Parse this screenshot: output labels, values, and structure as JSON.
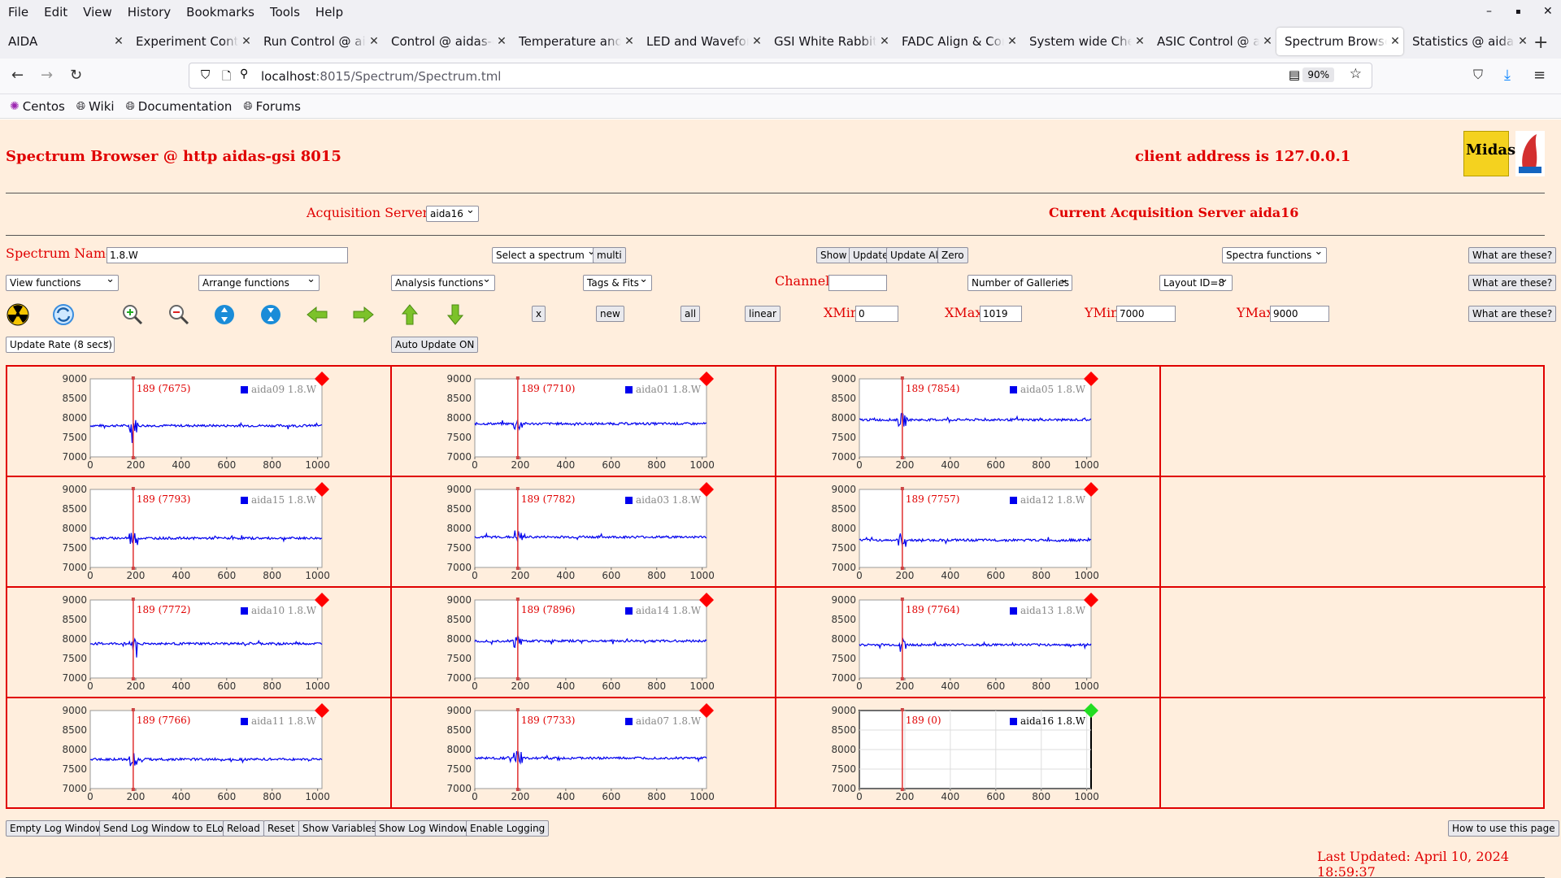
{
  "menu": [
    "File",
    "Edit",
    "View",
    "History",
    "Bookmarks",
    "Tools",
    "Help"
  ],
  "window_controls": [
    "–",
    "▪",
    "✕"
  ],
  "tabs": [
    {
      "label": "AIDA",
      "active": false
    },
    {
      "label": "Experiment Control",
      "active": false
    },
    {
      "label": "Run Control @ aidas",
      "active": false
    },
    {
      "label": "Control @ aidas-gsi",
      "active": false
    },
    {
      "label": "Temperature and s",
      "active": false
    },
    {
      "label": "LED and Waveform",
      "active": false
    },
    {
      "label": "GSI White Rabbit T",
      "active": false
    },
    {
      "label": "FADC Align & Cont",
      "active": false
    },
    {
      "label": "System wide Check",
      "active": false
    },
    {
      "label": "ASIC Control @ aid",
      "active": false
    },
    {
      "label": "Spectrum Browser",
      "active": true
    },
    {
      "label": "Statistics @ aidas-",
      "active": false
    }
  ],
  "nav": {
    "url_host": "localhost",
    "url_path": ":8015/Spectrum/Spectrum.tml",
    "zoom": "90%"
  },
  "bookmarks": [
    {
      "label": "Centos",
      "icon": "centos-icon"
    },
    {
      "label": "Wiki",
      "icon": "globe-icon"
    },
    {
      "label": "Documentation",
      "icon": "globe-icon"
    },
    {
      "label": "Forums",
      "icon": "globe-icon"
    }
  ],
  "page": {
    "title": "Spectrum Browser @ http aidas-gsi 8015",
    "client_address": "client address is 127.0.0.1",
    "logo_text": "Midas",
    "acq_label": "Acquisition Servers",
    "acq_selected": "aida16",
    "current_server": "Current Acquisition Server aida16",
    "spectrum_name_label": "Spectrum Name:",
    "spectrum_name_value": "1.8.W",
    "select_spectrum": "Select a spectrum",
    "multi": "multi",
    "show": "Show",
    "update": "Update",
    "update_all": "Update All",
    "zero": "Zero",
    "spectra_functions": "Spectra functions",
    "what_are_these": "What are these?",
    "view_functions": "View functions",
    "arrange_functions": "Arrange functions",
    "analysis_functions": "Analysis functions",
    "tags_fits": "Tags & Fits",
    "channel_label": "Channel:",
    "channel_value": "",
    "number_of_galleries": "Number of Galleries",
    "layout_id": "Layout ID=8",
    "x_btn": "x",
    "new_btn": "new",
    "all_btn": "all",
    "linear_btn": "linear",
    "xmin_label": "XMin",
    "xmin_value": "0",
    "xmax_label": "XMax",
    "xmax_value": "1019",
    "ymin_label": "YMin",
    "ymin_value": "7000",
    "ymax_label": "YMax",
    "ymax_value": "9000",
    "update_rate": "Update Rate (8 secs)",
    "auto_update": "Auto Update ON",
    "icons": [
      "radiation-icon",
      "refresh-icon",
      "zoom-in-icon",
      "zoom-out-icon",
      "expand-y-icon",
      "compress-y-icon",
      "left-arrow-icon",
      "right-arrow-icon",
      "up-arrow-icon",
      "down-arrow-icon"
    ],
    "bottom_buttons": [
      "Empty Log Window",
      "Send Log Window to ELog",
      "Reload",
      "Reset",
      "Show Variables",
      "Show Log Window",
      "Enable Logging"
    ],
    "how_to": "How to use this page",
    "last_updated": "Last Updated: April 10, 2024 18:59:37"
  },
  "chart_data": [
    {
      "type": "line",
      "series": [
        {
          "name": "aida09 1.8.W"
        }
      ],
      "marker_label": "189 (7675)",
      "marker_x": 189,
      "baseline": 7800,
      "status_color": "#ff0000",
      "xlim": [
        0,
        1019
      ],
      "ylim": [
        7000,
        9000
      ],
      "x_ticks": [
        0,
        200,
        400,
        600,
        800,
        1000
      ],
      "y_ticks": [
        9000,
        8500,
        8000,
        7500,
        7000
      ]
    },
    {
      "type": "line",
      "series": [
        {
          "name": "aida01 1.8.W"
        }
      ],
      "marker_label": "189 (7710)",
      "marker_x": 189,
      "baseline": 7850,
      "status_color": "#ff0000",
      "xlim": [
        0,
        1019
      ],
      "ylim": [
        7000,
        9000
      ],
      "x_ticks": [
        0,
        200,
        400,
        600,
        800,
        1000
      ],
      "y_ticks": [
        9000,
        8500,
        8000,
        7500,
        7000
      ]
    },
    {
      "type": "line",
      "series": [
        {
          "name": "aida05 1.8.W"
        }
      ],
      "marker_label": "189 (7854)",
      "marker_x": 189,
      "baseline": 7950,
      "status_color": "#ff0000",
      "xlim": [
        0,
        1019
      ],
      "ylim": [
        7000,
        9000
      ],
      "x_ticks": [
        0,
        200,
        400,
        600,
        800,
        1000
      ],
      "y_ticks": [
        9000,
        8500,
        8000,
        7500,
        7000
      ]
    },
    {
      "type": "line",
      "series": [
        {
          "name": "aida15 1.8.W"
        }
      ],
      "marker_label": "189 (7793)",
      "marker_x": 189,
      "baseline": 7750,
      "status_color": "#ff0000",
      "xlim": [
        0,
        1019
      ],
      "ylim": [
        7000,
        9000
      ],
      "x_ticks": [
        0,
        200,
        400,
        600,
        800,
        1000
      ],
      "y_ticks": [
        9000,
        8500,
        8000,
        7500,
        7000
      ]
    },
    {
      "type": "line",
      "series": [
        {
          "name": "aida03 1.8.W"
        }
      ],
      "marker_label": "189 (7782)",
      "marker_x": 189,
      "baseline": 7780,
      "status_color": "#ff0000",
      "xlim": [
        0,
        1019
      ],
      "ylim": [
        7000,
        9000
      ],
      "x_ticks": [
        0,
        200,
        400,
        600,
        800,
        1000
      ],
      "y_ticks": [
        9000,
        8500,
        8000,
        7500,
        7000
      ]
    },
    {
      "type": "line",
      "series": [
        {
          "name": "aida12 1.8.W"
        }
      ],
      "marker_label": "189 (7757)",
      "marker_x": 189,
      "baseline": 7700,
      "status_color": "#ff0000",
      "xlim": [
        0,
        1019
      ],
      "ylim": [
        7000,
        9000
      ],
      "x_ticks": [
        0,
        200,
        400,
        600,
        800,
        1000
      ],
      "y_ticks": [
        9000,
        8500,
        8000,
        7500,
        7000
      ]
    },
    {
      "type": "line",
      "series": [
        {
          "name": "aida10 1.8.W"
        }
      ],
      "marker_label": "189 (7772)",
      "marker_x": 189,
      "baseline": 7880,
      "status_color": "#ff0000",
      "xlim": [
        0,
        1019
      ],
      "ylim": [
        7000,
        9000
      ],
      "x_ticks": [
        0,
        200,
        400,
        600,
        800,
        1000
      ],
      "y_ticks": [
        9000,
        8500,
        8000,
        7500,
        7000
      ]
    },
    {
      "type": "line",
      "series": [
        {
          "name": "aida14 1.8.W"
        }
      ],
      "marker_label": "189 (7896)",
      "marker_x": 189,
      "baseline": 7950,
      "status_color": "#ff0000",
      "xlim": [
        0,
        1019
      ],
      "ylim": [
        7000,
        9000
      ],
      "x_ticks": [
        0,
        200,
        400,
        600,
        800,
        1000
      ],
      "y_ticks": [
        9000,
        8500,
        8000,
        7500,
        7000
      ]
    },
    {
      "type": "line",
      "series": [
        {
          "name": "aida13 1.8.W"
        }
      ],
      "marker_label": "189 (7764)",
      "marker_x": 189,
      "baseline": 7850,
      "status_color": "#ff0000",
      "xlim": [
        0,
        1019
      ],
      "ylim": [
        7000,
        9000
      ],
      "x_ticks": [
        0,
        200,
        400,
        600,
        800,
        1000
      ],
      "y_ticks": [
        9000,
        8500,
        8000,
        7500,
        7000
      ]
    },
    {
      "type": "line",
      "series": [
        {
          "name": "aida11 1.8.W"
        }
      ],
      "marker_label": "189 (7766)",
      "marker_x": 189,
      "baseline": 7750,
      "status_color": "#ff0000",
      "xlim": [
        0,
        1019
      ],
      "ylim": [
        7000,
        9000
      ],
      "x_ticks": [
        0,
        200,
        400,
        600,
        800,
        1000
      ],
      "y_ticks": [
        9000,
        8500,
        8000,
        7500,
        7000
      ]
    },
    {
      "type": "line",
      "series": [
        {
          "name": "aida07 1.8.W"
        }
      ],
      "marker_label": "189 (7733)",
      "marker_x": 189,
      "baseline": 7780,
      "status_color": "#ff0000",
      "xlim": [
        0,
        1019
      ],
      "ylim": [
        7000,
        9000
      ],
      "x_ticks": [
        0,
        200,
        400,
        600,
        800,
        1000
      ],
      "y_ticks": [
        9000,
        8500,
        8000,
        7500,
        7000
      ]
    },
    {
      "type": "line",
      "series": [
        {
          "name": "aida16 1.8.W"
        }
      ],
      "marker_label": "189 (0)",
      "marker_x": 189,
      "baseline": null,
      "status_color": "#22dd22",
      "grid": true,
      "xlim": [
        0,
        1019
      ],
      "ylim": [
        7000,
        9000
      ],
      "x_ticks": [
        0,
        200,
        400,
        600,
        800,
        1000
      ],
      "y_ticks": [
        9000,
        8500,
        8000,
        7500,
        7000
      ]
    }
  ]
}
